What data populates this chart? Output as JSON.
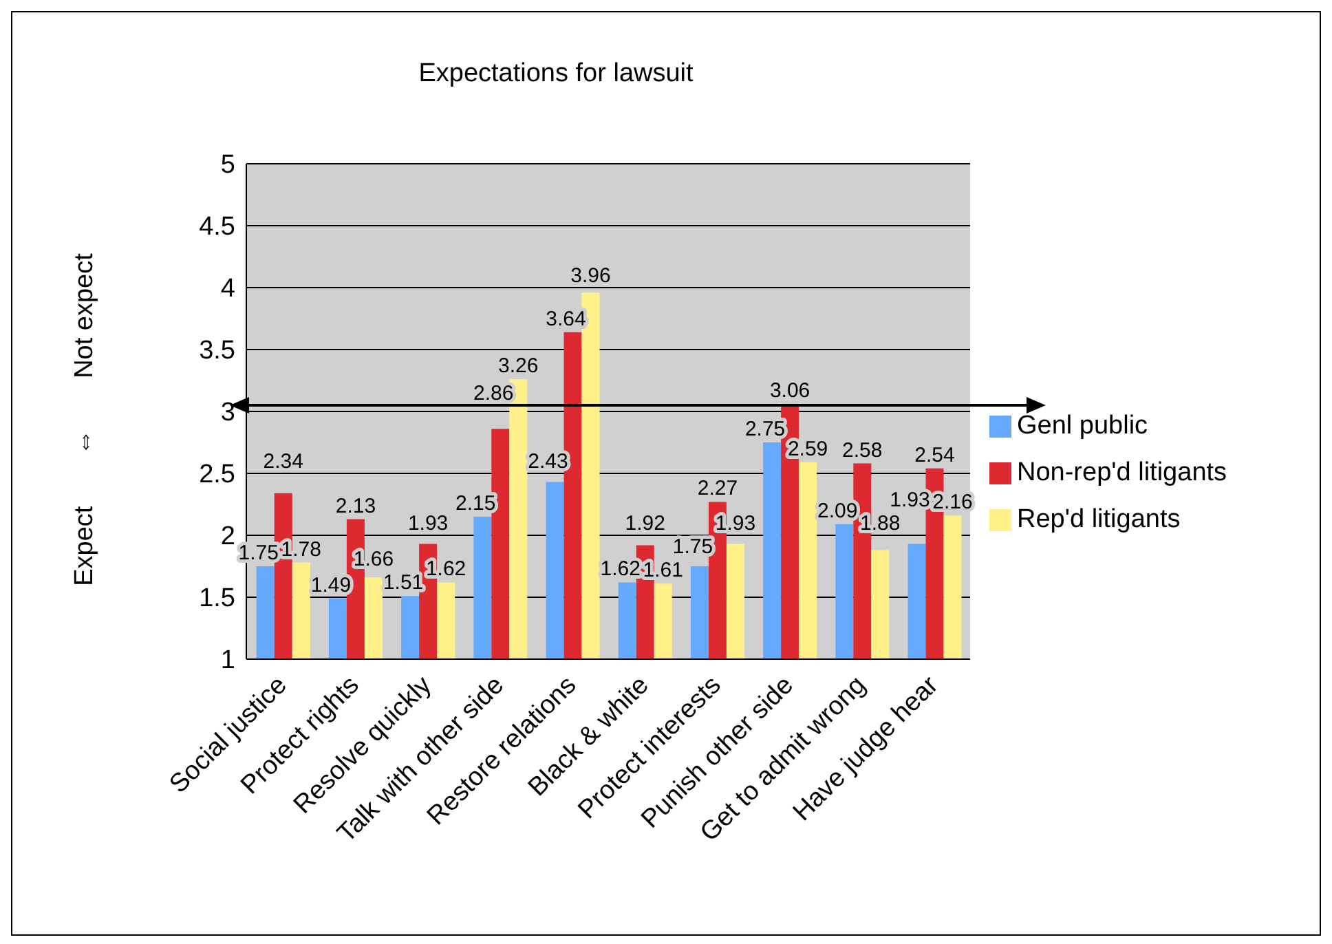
{
  "chart_data": {
    "type": "bar",
    "title": "Expectations for lawsuit",
    "ylabel": "Expect ⇔ Not expect",
    "categories": [
      "Social justice",
      "Protect rights",
      "Resolve quickly",
      "Talk with other side",
      "Restore relations",
      "Black & white",
      "Protect interests",
      "Punish other side",
      "Get to admit wrong",
      "Have judge hear"
    ],
    "series": [
      {
        "name": "Genl public",
        "color": "#66aaff",
        "values": [
          1.75,
          1.49,
          1.51,
          2.15,
          2.43,
          1.62,
          1.75,
          2.75,
          2.09,
          1.93
        ]
      },
      {
        "name": "Non-rep'd litigants",
        "color": "#dd2a30",
        "values": [
          2.34,
          2.13,
          1.93,
          2.86,
          3.64,
          1.92,
          2.27,
          3.06,
          2.58,
          2.54
        ]
      },
      {
        "name": "Rep'd litigants",
        "color": "#fff08a",
        "values": [
          1.78,
          1.66,
          1.62,
          3.26,
          3.96,
          1.61,
          1.93,
          2.59,
          1.88,
          2.16
        ]
      }
    ],
    "ylim": [
      1,
      5
    ],
    "yticks": [
      1,
      1.5,
      2,
      2.5,
      3,
      3.5,
      4,
      4.5,
      5
    ],
    "grid": "y",
    "legend": "right",
    "data_labels": true,
    "ref_lines": [
      {
        "axis": "y",
        "value": 3.05,
        "color": "#000000"
      }
    ]
  }
}
